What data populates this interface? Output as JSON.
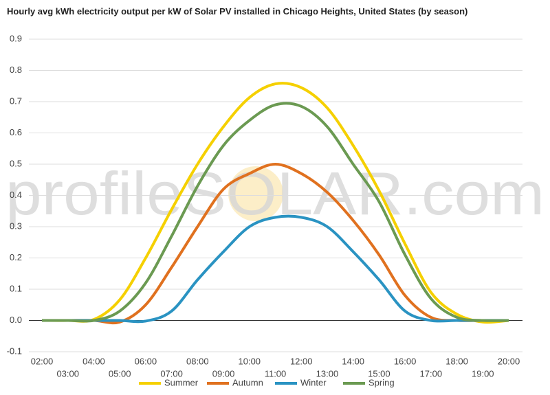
{
  "chart_data": {
    "type": "line",
    "title": "Hourly avg kWh electricity output per kW of Solar PV installed in Chicago Heights, United States (by season)",
    "watermark": "profileSOLAR.com",
    "categories": [
      "02:00",
      "03:00",
      "04:00",
      "05:00",
      "06:00",
      "07:00",
      "08:00",
      "09:00",
      "10:00",
      "11:00",
      "12:00",
      "13:00",
      "14:00",
      "15:00",
      "16:00",
      "17:00",
      "18:00",
      "19:00",
      "20:00"
    ],
    "series": [
      {
        "name": "Summer",
        "color": "#f5d000",
        "values": [
          0,
          0,
          0.003,
          0.066,
          0.2,
          0.355,
          0.5,
          0.62,
          0.713,
          0.757,
          0.745,
          0.68,
          0.56,
          0.415,
          0.245,
          0.09,
          0.02,
          -0.005,
          0
        ]
      },
      {
        "name": "Autumn",
        "color": "#e0711f",
        "values": [
          0,
          0,
          0,
          -0.005,
          0.05,
          0.17,
          0.3,
          0.42,
          0.47,
          0.5,
          0.47,
          0.41,
          0.32,
          0.21,
          0.08,
          0.01,
          0,
          0,
          0
        ]
      },
      {
        "name": "Winter",
        "color": "#2a93c2",
        "values": [
          0,
          0,
          0,
          0,
          -0.002,
          0.03,
          0.13,
          0.22,
          0.3,
          0.33,
          0.33,
          0.3,
          0.22,
          0.13,
          0.03,
          0,
          0,
          0,
          0
        ]
      },
      {
        "name": "Spring",
        "color": "#6b9a52",
        "values": [
          0,
          0,
          0,
          0.03,
          0.12,
          0.27,
          0.43,
          0.56,
          0.64,
          0.69,
          0.685,
          0.62,
          0.5,
          0.38,
          0.21,
          0.07,
          0.01,
          0,
          0
        ]
      }
    ],
    "ylim": [
      -0.1,
      0.9
    ],
    "yticks": [
      -0.1,
      {
        "value": 0,
        "label": "0.0"
      },
      0.1,
      0.2,
      0.3,
      0.4,
      0.5,
      0.6,
      0.7,
      0.8,
      0.9
    ],
    "grid": true,
    "legend": "bottom"
  }
}
